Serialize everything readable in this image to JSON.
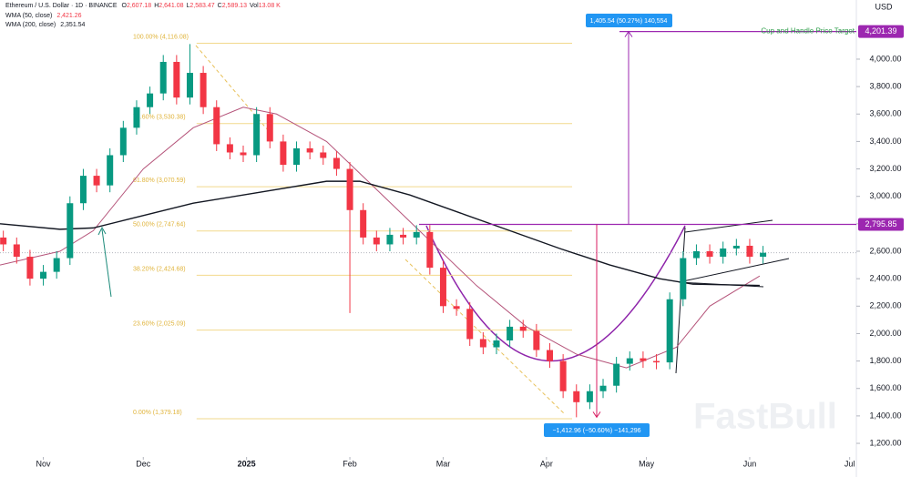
{
  "chart_data": {
    "type": "candlestick",
    "title": "Ethereum / U.S. Dollar · 1D · BINANCE",
    "ohlc": [
      {
        "label": "O",
        "value": "2,607.18"
      },
      {
        "label": "H",
        "value": "2,641.08"
      },
      {
        "label": "L",
        "value": "2,583.47"
      },
      {
        "label": "C",
        "value": "2,589.13"
      },
      {
        "label": "Vol",
        "value": "13.08 K"
      }
    ],
    "currency": "USD",
    "watermark": "FastBull",
    "xlim": [
      -13,
      244
    ],
    "ylim": [
      1114,
      4431
    ],
    "xticks": [
      {
        "value": 0,
        "label": "Nov"
      },
      {
        "value": 30,
        "label": "Dec"
      },
      {
        "value": 61,
        "label": "2025"
      },
      {
        "value": 92,
        "label": "Feb"
      },
      {
        "value": 120,
        "label": "Mar"
      },
      {
        "value": 151,
        "label": "Apr"
      },
      {
        "value": 181,
        "label": "May"
      },
      {
        "value": 212,
        "label": "Jun"
      },
      {
        "value": 242,
        "label": "Jul"
      }
    ],
    "yticks": [
      {
        "value": 1200,
        "label": "1,200.00"
      },
      {
        "value": 1400,
        "label": "1,400.00"
      },
      {
        "value": 1600,
        "label": "1,600.00"
      },
      {
        "value": 1800,
        "label": "1,800.00"
      },
      {
        "value": 2000,
        "label": "2,000.00"
      },
      {
        "value": 2200,
        "label": "2,200.00"
      },
      {
        "value": 2400,
        "label": "2,400.00"
      },
      {
        "value": 2600,
        "label": "2,600.00"
      },
      {
        "value": 2800,
        "label": "2,800.00"
      },
      {
        "value": 3000,
        "label": "3,000.00"
      },
      {
        "value": 3200,
        "label": "3,200.00"
      },
      {
        "value": 3400,
        "label": "3,400.00"
      },
      {
        "value": 3600,
        "label": "3,600.00"
      },
      {
        "value": 3800,
        "label": "3,800.00"
      },
      {
        "value": 4000,
        "label": "4,000.00"
      }
    ],
    "up_color": "#089981",
    "down_color": "#f23645",
    "x": [
      -12,
      -8,
      -4,
      0,
      4,
      8,
      12,
      16,
      20,
      24,
      28,
      32,
      36,
      40,
      44,
      48,
      52,
      56,
      60,
      64,
      68,
      72,
      76,
      80,
      84,
      88,
      92,
      96,
      100,
      104,
      108,
      112,
      116,
      120,
      124,
      128,
      132,
      136,
      140,
      144,
      148,
      152,
      156,
      160,
      164,
      168,
      172,
      176,
      180,
      184,
      188,
      192,
      196,
      200,
      204,
      208,
      212,
      216
    ],
    "open": [
      2700,
      2650,
      2560,
      2400,
      2450,
      2550,
      2950,
      3150,
      3080,
      3300,
      3500,
      3650,
      3750,
      3980,
      3720,
      3900,
      3650,
      3380,
      3320,
      3300,
      3600,
      3400,
      3230,
      3350,
      3320,
      3280,
      3200,
      2900,
      2700,
      2650,
      2720,
      2700,
      2740,
      2480,
      2200,
      2180,
      1960,
      1900,
      1950,
      2050,
      2020,
      1880,
      1800,
      1580,
      1500,
      1580,
      1620,
      1780,
      1820,
      1800,
      1790,
      2250,
      2550,
      2600,
      2560,
      2620,
      2640,
      2560
    ],
    "high": [
      2750,
      2700,
      2610,
      2500,
      2600,
      3000,
      3200,
      3200,
      3350,
      3550,
      3700,
      3800,
      4030,
      4030,
      4110,
      3950,
      3700,
      3430,
      3370,
      3650,
      3650,
      3450,
      3400,
      3400,
      3370,
      3330,
      3250,
      2950,
      2750,
      2770,
      2770,
      2790,
      2790,
      2530,
      2250,
      2230,
      2010,
      2000,
      2100,
      2100,
      2070,
      1930,
      1850,
      1630,
      1630,
      1670,
      1830,
      1870,
      1870,
      1850,
      2300,
      2600,
      2650,
      2650,
      2670,
      2690,
      2690,
      2639
    ],
    "low": [
      2600,
      2510,
      2350,
      2350,
      2400,
      2500,
      2900,
      3030,
      3030,
      3250,
      3450,
      3600,
      3700,
      3670,
      3670,
      3600,
      3330,
      3270,
      3250,
      3250,
      3350,
      3180,
      3180,
      3270,
      3230,
      3150,
      2150,
      2650,
      2600,
      2600,
      2650,
      2650,
      2430,
      2150,
      2130,
      1910,
      1850,
      1850,
      1900,
      1970,
      1830,
      1750,
      1530,
      1390,
      1450,
      1530,
      1570,
      1730,
      1750,
      1740,
      1740,
      2200,
      2500,
      2510,
      2510,
      2570,
      2510,
      2510
    ],
    "close": [
      2650,
      2560,
      2400,
      2450,
      2550,
      2950,
      3150,
      3080,
      3300,
      3500,
      3650,
      3750,
      3980,
      3720,
      3900,
      3650,
      3380,
      3320,
      3300,
      3600,
      3400,
      3230,
      3350,
      3320,
      3280,
      3200,
      2900,
      2700,
      2650,
      2720,
      2700,
      2740,
      2480,
      2200,
      2180,
      1960,
      1900,
      1950,
      2050,
      2020,
      1880,
      1800,
      1580,
      1500,
      1580,
      1620,
      1780,
      1820,
      1800,
      1790,
      2250,
      2550,
      2600,
      2560,
      2620,
      2640,
      2560,
      2589
    ],
    "series": [
      {
        "name": "WMA (50, close)",
        "last": "2,421.26",
        "color": "#b5547a",
        "x": [
          -13,
          5,
          15,
          30,
          45,
          60,
          70,
          85,
          100,
          115,
          130,
          145,
          160,
          175,
          190,
          200,
          215
        ],
        "values": [
          2500,
          2600,
          2750,
          3200,
          3500,
          3650,
          3600,
          3400,
          3050,
          2700,
          2350,
          2050,
          1850,
          1750,
          1900,
          2200,
          2420
        ]
      },
      {
        "name": "WMA (200, close)",
        "last": "2,351.54",
        "color": "#131722",
        "x": [
          -13,
          5,
          15,
          25,
          45,
          65,
          85,
          95,
          110,
          125,
          140,
          155,
          170,
          185,
          195,
          215
        ],
        "values": [
          2800,
          2760,
          2770,
          2830,
          2950,
          3030,
          3110,
          3110,
          3010,
          2880,
          2750,
          2620,
          2500,
          2400,
          2360,
          2351
        ]
      }
    ],
    "fib_levels": [
      {
        "value": 4116.08,
        "label": "100.00% (4,116.08)"
      },
      {
        "value": 3530.38,
        "label": "78.60% (3,530.38)"
      },
      {
        "value": 3070.59,
        "label": "61.80% (3,070.59)"
      },
      {
        "value": 2747.64,
        "label": "50.00% (2,747.64)"
      },
      {
        "value": 2424.68,
        "label": "38.20% (2,424.68)"
      },
      {
        "value": 2025.09,
        "label": "23.60% (2,025.09)"
      },
      {
        "value": 1379.18,
        "label": "0.00% (1,379.18)"
      }
    ],
    "levels": [
      {
        "value": 4201.39,
        "label": "4,201.39"
      },
      {
        "value": 2795.85,
        "label": "2,795.85"
      }
    ],
    "annotations": {
      "target": "Cup and Handle Price Target",
      "up_measure": "1,405.54 (50.27%) 140,554",
      "down_measure": "−1,412.96 (−50.60%) −141,296"
    }
  }
}
